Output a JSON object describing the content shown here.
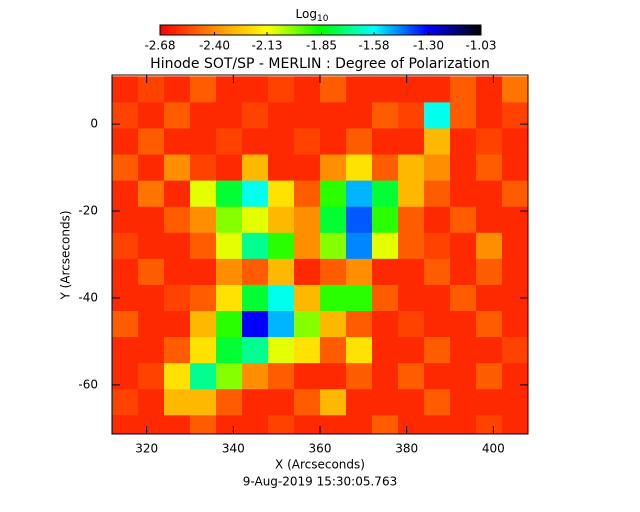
{
  "chart_data": {
    "type": "heatmap",
    "title": "Hinode SOT/SP - MERLIN : Degree of Polarization",
    "x_label": "X (Arcseconds)",
    "y_label": "Y (Arcseconds)",
    "annotation": "9-Aug-2019 15:30:05.763",
    "colorbar_label": "Log",
    "colorbar_label_sub": "10",
    "colormap": [
      "#ff0000",
      "#ff8c00",
      "#ffff00",
      "#00ff00",
      "#00ffff",
      "#0000ff",
      "#000000"
    ],
    "clim": [
      -2.68,
      -1.03
    ],
    "cticks": [
      -2.68,
      {
        "value": -2.4,
        "label": "-2.40"
      },
      -2.13,
      -1.85,
      -1.58,
      {
        "value": -1.3,
        "label": "-1.30"
      },
      -1.03
    ],
    "xlim": [
      312,
      408
    ],
    "ylim": [
      -71.3,
      11.3
    ],
    "xticks": [
      320,
      340,
      360,
      380,
      400
    ],
    "yticks": [
      0,
      -20,
      -40,
      -60
    ],
    "x": [
      315,
      321,
      327,
      333,
      339,
      345,
      351,
      357,
      363,
      369,
      375,
      381,
      387,
      393,
      399,
      405
    ],
    "y": [
      8,
      2,
      -4,
      -10,
      -16,
      -22,
      -28,
      -34,
      -40,
      -46,
      -52,
      -58,
      -64,
      -70
    ],
    "z": [
      [
        -2.6,
        -2.55,
        -2.6,
        -2.5,
        -2.6,
        -2.6,
        -2.55,
        -2.6,
        -2.5,
        -2.6,
        -2.6,
        -2.6,
        -2.6,
        -2.5,
        -2.6,
        -2.45
      ],
      [
        -2.55,
        -2.6,
        -2.5,
        -2.6,
        -2.6,
        -2.55,
        -2.6,
        -2.6,
        -2.6,
        -2.6,
        -2.5,
        -2.55,
        -1.6,
        -2.5,
        -2.6,
        -2.55
      ],
      [
        -2.6,
        -2.5,
        -2.6,
        -2.6,
        -2.55,
        -2.6,
        -2.6,
        -2.55,
        -2.6,
        -2.5,
        -2.6,
        -2.6,
        -2.3,
        -2.6,
        -2.55,
        -2.6
      ],
      [
        -2.5,
        -2.6,
        -2.4,
        -2.55,
        -2.6,
        -2.3,
        -2.6,
        -2.6,
        -2.4,
        -2.2,
        -2.5,
        -2.3,
        -2.4,
        -2.6,
        -2.5,
        -2.6
      ],
      [
        -2.6,
        -2.45,
        -2.6,
        -2.1,
        -1.8,
        -1.6,
        -2.2,
        -2.5,
        -1.9,
        -1.5,
        -1.8,
        -2.3,
        -2.5,
        -2.6,
        -2.6,
        -2.5
      ],
      [
        -2.6,
        -2.6,
        -2.5,
        -2.4,
        -2.0,
        -2.1,
        -2.3,
        -2.4,
        -1.8,
        -1.4,
        -1.9,
        -2.5,
        -2.6,
        -2.5,
        -2.6,
        -2.6
      ],
      [
        -2.55,
        -2.6,
        -2.6,
        -2.5,
        -2.1,
        -1.7,
        -1.9,
        -2.4,
        -2.0,
        -1.45,
        -2.1,
        -2.5,
        -2.55,
        -2.6,
        -2.4,
        -2.6
      ],
      [
        -2.6,
        -2.5,
        -2.6,
        -2.6,
        -2.4,
        -2.5,
        -2.3,
        -2.6,
        -2.5,
        -2.4,
        -2.6,
        -2.6,
        -2.5,
        -2.6,
        -2.5,
        -2.6
      ],
      [
        -2.6,
        -2.6,
        -2.55,
        -2.5,
        -2.2,
        -1.8,
        -1.6,
        -2.3,
        -1.9,
        -1.9,
        -2.5,
        -2.6,
        -2.6,
        -2.5,
        -2.6,
        -2.6
      ],
      [
        -2.5,
        -2.6,
        -2.6,
        -2.3,
        -1.9,
        -1.3,
        -1.5,
        -2.0,
        -2.3,
        -2.5,
        -2.6,
        -2.55,
        -2.6,
        -2.6,
        -2.5,
        -2.6
      ],
      [
        -2.6,
        -2.6,
        -2.5,
        -2.2,
        -1.8,
        -1.7,
        -2.1,
        -2.2,
        -2.5,
        -2.2,
        -2.6,
        -2.6,
        -2.5,
        -2.6,
        -2.6,
        -2.55
      ],
      [
        -2.6,
        -2.55,
        -2.2,
        -1.7,
        -2.0,
        -2.4,
        -2.5,
        -2.6,
        -2.6,
        -2.5,
        -2.6,
        -2.5,
        -2.6,
        -2.6,
        -2.5,
        -2.6
      ],
      [
        -2.55,
        -2.6,
        -2.3,
        -2.3,
        -2.5,
        -2.6,
        -2.6,
        -2.5,
        -2.3,
        -2.6,
        -2.6,
        -2.6,
        -2.5,
        -2.6,
        -2.6,
        -2.6
      ],
      [
        -2.6,
        -2.6,
        -2.6,
        -2.5,
        -2.6,
        -2.6,
        -2.55,
        -2.6,
        -2.6,
        -2.6,
        -2.5,
        -2.6,
        -2.6,
        -2.6,
        -2.55,
        -2.6
      ]
    ]
  }
}
